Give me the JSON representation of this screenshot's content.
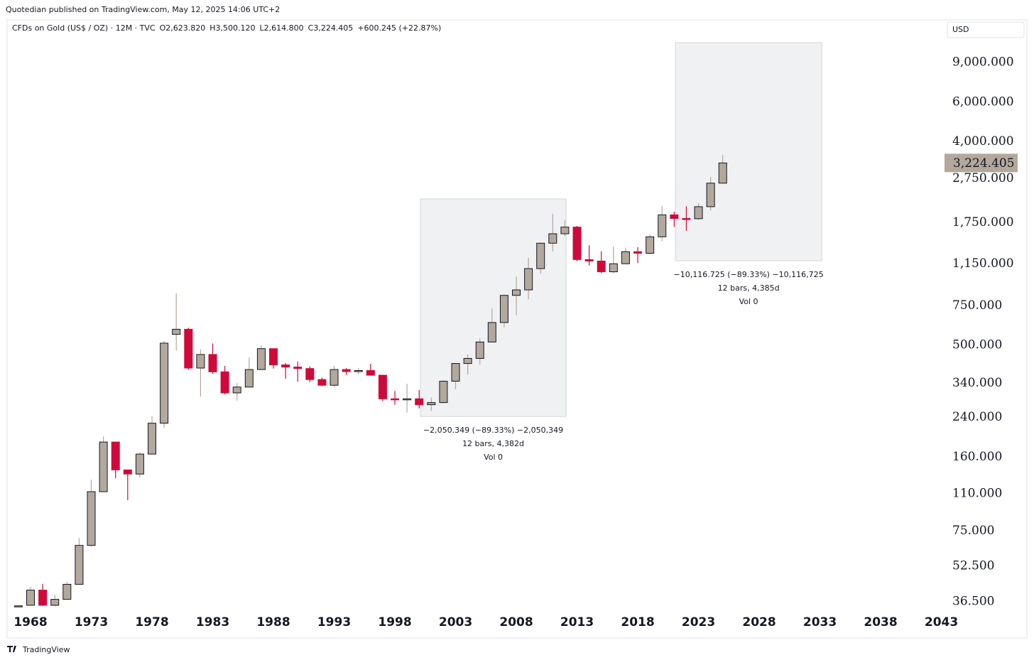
{
  "publisher": "Quotedian published on TradingView.com, May 12, 2025 14:06 UTC+2",
  "footer": "TradingView",
  "chart_data": {
    "type": "candlestick",
    "title": "CFDs on Gold (US$ / OZ) · 12M · TVC",
    "legend_values": [
      "O2,623.820",
      "H3,500.120",
      "L2,614.800",
      "C3,224.405",
      "+600.245 (+22.87%)"
    ],
    "currency": "USD",
    "log_scale": true,
    "up_color": "#b2a89c",
    "down_color": "#d1093a",
    "x": [
      1967,
      1968,
      1969,
      1970,
      1971,
      1972,
      1973,
      1974,
      1975,
      1976,
      1977,
      1978,
      1979,
      1980,
      1981,
      1982,
      1983,
      1984,
      1985,
      1986,
      1987,
      1988,
      1989,
      1990,
      1991,
      1992,
      1993,
      1994,
      1995,
      1996,
      1997,
      1998,
      1999,
      2000,
      2001,
      2002,
      2003,
      2004,
      2005,
      2006,
      2007,
      2008,
      2009,
      2010,
      2011,
      2012,
      2013,
      2014,
      2015,
      2016,
      2017,
      2018,
      2019,
      2020,
      2021,
      2022,
      2023,
      2024,
      2025
    ],
    "open": [
      35,
      35.2,
      41.1,
      35.2,
      37.4,
      43.6,
      64.9,
      112.3,
      186.5,
      140.3,
      134.5,
      164.9,
      226,
      560,
      590,
      397,
      456,
      382,
      308,
      327,
      391,
      484,
      410,
      401,
      395,
      353,
      333,
      391,
      383,
      387,
      369,
      290,
      288,
      290,
      273,
      279,
      347,
      416,
      438,
      518,
      632,
      834,
      882,
      1096,
      1421,
      1565,
      1675,
      1202,
      1184,
      1061,
      1152,
      1303,
      1282,
      1517,
      1898,
      1829,
      1824,
      2063,
      2623.82
    ],
    "high": [
      35,
      42.6,
      43.8,
      39.2,
      44.6,
      70,
      127,
      197.5,
      186.5,
      140.3,
      168,
      243,
      524,
      850,
      599,
      481,
      510,
      406,
      341,
      442,
      502,
      485,
      418,
      424,
      403,
      360,
      406,
      397,
      397,
      415,
      369,
      314,
      338,
      317,
      294,
      350,
      417,
      456,
      537,
      730,
      842,
      1012,
      1227,
      1432,
      1921,
      1796,
      1696,
      1392,
      1307,
      1375,
      1358,
      1366,
      1557,
      2075,
      1959,
      2070,
      2135,
      2790,
      3500.12
    ],
    "low": [
      35,
      35,
      35,
      34.8,
      37.3,
      43.5,
      64,
      114.5,
      128.8,
      103,
      130,
      164,
      216,
      474,
      391,
      297,
      374,
      303,
      285,
      326,
      390,
      395,
      356,
      345,
      344,
      330,
      326,
      370,
      372,
      367,
      283,
      273,
      252,
      263,
      256,
      277,
      320,
      372,
      411,
      516,
      602,
      681,
      802,
      1044,
      1308,
      1527,
      1181,
      1131,
      1046,
      1046,
      1146,
      1160,
      1266,
      1451,
      1677,
      1614,
      1804,
      1984,
      2614.8
    ],
    "close": [
      35,
      41.1,
      35.2,
      37.4,
      43.6,
      64.9,
      112.3,
      186.5,
      140.3,
      134.5,
      164.9,
      226,
      512,
      590,
      397,
      456,
      382,
      308,
      327,
      391,
      484,
      410,
      401,
      395,
      353,
      333,
      391,
      383,
      387,
      369,
      290,
      288,
      290,
      273,
      279,
      347,
      416,
      438,
      518,
      632,
      834,
      882,
      1096,
      1421,
      1565,
      1675,
      1202,
      1184,
      1061,
      1152,
      1303,
      1282,
      1517,
      1898,
      1829,
      1824,
      2063,
      2624,
      3224.405
    ],
    "last_price_label": "3,224.405",
    "xlim": [
      1966.07,
      2043.26
    ],
    "xticks": [
      1968,
      1973,
      1978,
      1983,
      1988,
      1993,
      1998,
      2003,
      2008,
      2013,
      2018,
      2023,
      2028,
      2033,
      2038,
      2043
    ],
    "ylim": [
      33.2,
      13900
    ],
    "yticks": [
      {
        "value": 36.5,
        "label": "36.500"
      },
      {
        "value": 52.5,
        "label": "52.500"
      },
      {
        "value": 75,
        "label": "75.000"
      },
      {
        "value": 110,
        "label": "110.000"
      },
      {
        "value": 160,
        "label": "160.000"
      },
      {
        "value": 240,
        "label": "240.000"
      },
      {
        "value": 340,
        "label": "340.000"
      },
      {
        "value": 500,
        "label": "500.000"
      },
      {
        "value": 750,
        "label": "750.000"
      },
      {
        "value": 1150,
        "label": "1,150.000"
      },
      {
        "value": 1750,
        "label": "1,750.000"
      },
      {
        "value": 2750,
        "label": "2,750.000"
      },
      {
        "value": 4000,
        "label": "4,000.000"
      },
      {
        "value": 6000,
        "label": "6,000.000"
      },
      {
        "value": 9000,
        "label": "9,000.000"
      }
    ],
    "ranges": [
      {
        "x": [
          2000.1,
          2012.1
        ],
        "y": [
          242,
          2234
        ],
        "lines": [
          "−2,050.349 (−89.33%) −2,050,349",
          "12 bars, 4,382d",
          "Vol 0"
        ]
      },
      {
        "x": [
          2021.1,
          2033.15
        ],
        "y": [
          1188,
          11020
        ],
        "lines": [
          "−10,116.725 (−89.33%) −10,116,725",
          "12 bars, 4,385d",
          "Vol 0"
        ]
      }
    ]
  }
}
